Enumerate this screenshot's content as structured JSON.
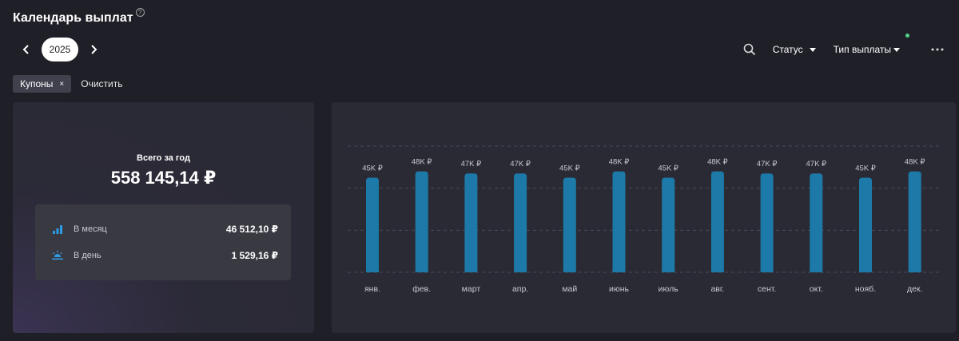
{
  "header": {
    "title": "Календарь выплат",
    "help": "?"
  },
  "year_nav": {
    "year": "2025",
    "prev_icon": "chevron-left-icon",
    "next_icon": "chevron-right-icon"
  },
  "toolbar": {
    "search_icon": "search-icon",
    "status_label": "Статус",
    "payment_type_label": "Тип выплаты",
    "more_icon": "more-horizontal-icon",
    "indicator_color": "#4fd48a"
  },
  "filters": {
    "chip_label": "Купоны",
    "chip_close": "×",
    "clear_label": "Очистить"
  },
  "summary": {
    "total_label": "Всего за год",
    "total_value": "558 145,14 ₽",
    "monthly_label": "В месяц",
    "monthly_value": "46 512,10 ₽",
    "daily_label": "В день",
    "daily_value": "1 529,16 ₽"
  },
  "colors": {
    "bar": "#1d7aa8",
    "accent": "#2e9be6",
    "grid": "#4a4a56"
  },
  "chart_data": {
    "type": "bar",
    "categories": [
      "янв.",
      "фев.",
      "март",
      "апр.",
      "май",
      "июнь",
      "июль",
      "авг.",
      "сент.",
      "окт.",
      "нояб.",
      "дек."
    ],
    "values": [
      45,
      48,
      47,
      47,
      45,
      48,
      45,
      48,
      47,
      47,
      45,
      48
    ],
    "data_labels": [
      "45K ₽",
      "48K ₽",
      "47K ₽",
      "47K ₽",
      "45K ₽",
      "48K ₽",
      "45K ₽",
      "48K ₽",
      "47K ₽",
      "47K ₽",
      "45K ₽",
      "48K ₽"
    ],
    "ylim": [
      0,
      60
    ],
    "grid": true
  }
}
